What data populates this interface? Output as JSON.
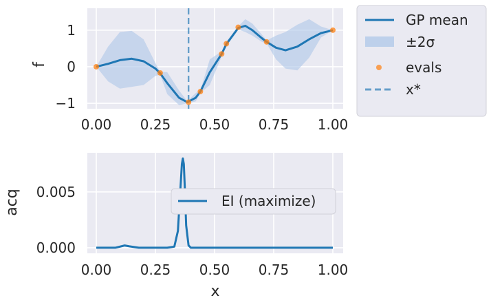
{
  "chart_data": [
    {
      "type": "line",
      "xlim": [
        0,
        1
      ],
      "ylim": [
        -1.15,
        1.6
      ],
      "xticks": [
        "0.00",
        "0.25",
        "0.50",
        "0.75",
        "1.00"
      ],
      "yticks": [
        "−1",
        "0",
        "1"
      ],
      "ylabel": "f",
      "xlabel": "",
      "grid": true,
      "legend_placement": "outside-right",
      "series": [
        {
          "name": "GP mean",
          "style": "line",
          "color": "#1f77b4",
          "x": [
            0.0,
            0.05,
            0.1,
            0.15,
            0.2,
            0.25,
            0.27,
            0.3,
            0.35,
            0.385,
            0.42,
            0.44,
            0.48,
            0.53,
            0.55,
            0.6,
            0.63,
            0.66,
            0.7,
            0.72,
            0.76,
            0.8,
            0.85,
            0.9,
            0.95,
            1.0
          ],
          "y": [
            0.0,
            0.08,
            0.18,
            0.22,
            0.15,
            -0.05,
            -0.18,
            -0.45,
            -0.85,
            -0.97,
            -0.85,
            -0.68,
            -0.15,
            0.35,
            0.62,
            1.06,
            1.12,
            1.0,
            0.78,
            0.68,
            0.52,
            0.45,
            0.55,
            0.75,
            0.92,
            1.0
          ]
        },
        {
          "name": "±2σ",
          "style": "band",
          "color": "#aec7e8",
          "x": [
            0.0,
            0.05,
            0.1,
            0.15,
            0.2,
            0.25,
            0.27,
            0.3,
            0.35,
            0.385,
            0.42,
            0.44,
            0.48,
            0.53,
            0.55,
            0.6,
            0.63,
            0.66,
            0.7,
            0.72,
            0.76,
            0.8,
            0.85,
            0.9,
            0.95,
            1.0
          ],
          "lower": [
            0.0,
            -0.4,
            -0.6,
            -0.55,
            -0.5,
            -0.25,
            -0.22,
            -0.75,
            -1.05,
            -1.0,
            -0.95,
            -0.72,
            -0.5,
            0.28,
            0.55,
            1.02,
            0.95,
            0.85,
            0.68,
            0.64,
            0.2,
            -0.05,
            -0.1,
            0.25,
            0.8,
            1.0
          ],
          "upper": [
            0.0,
            0.55,
            0.95,
            0.98,
            0.75,
            0.1,
            -0.14,
            -0.15,
            -0.65,
            -0.94,
            -0.72,
            -0.64,
            0.2,
            0.42,
            0.69,
            1.1,
            1.3,
            1.18,
            0.88,
            0.72,
            0.85,
            0.95,
            1.15,
            1.3,
            1.1,
            1.0
          ]
        },
        {
          "name": "evals",
          "style": "scatter",
          "color": "#ff7f0e",
          "x": [
            0.0,
            0.27,
            0.39,
            0.44,
            0.53,
            0.55,
            0.6,
            0.72,
            1.0
          ],
          "y": [
            0.0,
            -0.17,
            -0.97,
            -0.68,
            0.35,
            0.63,
            1.08,
            0.68,
            1.0
          ]
        },
        {
          "name": "x*",
          "style": "vline",
          "color": "#1f77b4",
          "x": 0.39
        }
      ],
      "legend": [
        "GP mean",
        "±2σ",
        "evals",
        "x*"
      ]
    },
    {
      "type": "line",
      "xlim": [
        0,
        1
      ],
      "ylim": [
        -0.0005,
        0.0085
      ],
      "xticks": [
        "0.00",
        "0.25",
        "0.50",
        "0.75",
        "1.00"
      ],
      "yticks": [
        "0.000",
        "0.005"
      ],
      "ytick_values": [
        0,
        0.005
      ],
      "ylabel": "acq",
      "xlabel": "x",
      "grid": true,
      "legend_placement": "center-right",
      "series": [
        {
          "name": "EI (maximize)",
          "style": "line",
          "color": "#1f77b4",
          "x": [
            0.0,
            0.08,
            0.11,
            0.12,
            0.14,
            0.18,
            0.3,
            0.33,
            0.345,
            0.355,
            0.362,
            0.366,
            0.37,
            0.375,
            0.38,
            0.39,
            0.4,
            0.5,
            0.75,
            1.0
          ],
          "y": [
            0.0,
            0.0,
            0.00015,
            0.0002,
            0.00012,
            0.0,
            0.0,
            0.0001,
            0.0015,
            0.005,
            0.0075,
            0.008,
            0.0075,
            0.005,
            0.002,
            0.0002,
            0.0,
            0.0,
            0.0,
            0.0
          ]
        }
      ],
      "legend": [
        "EI (maximize)"
      ]
    }
  ]
}
